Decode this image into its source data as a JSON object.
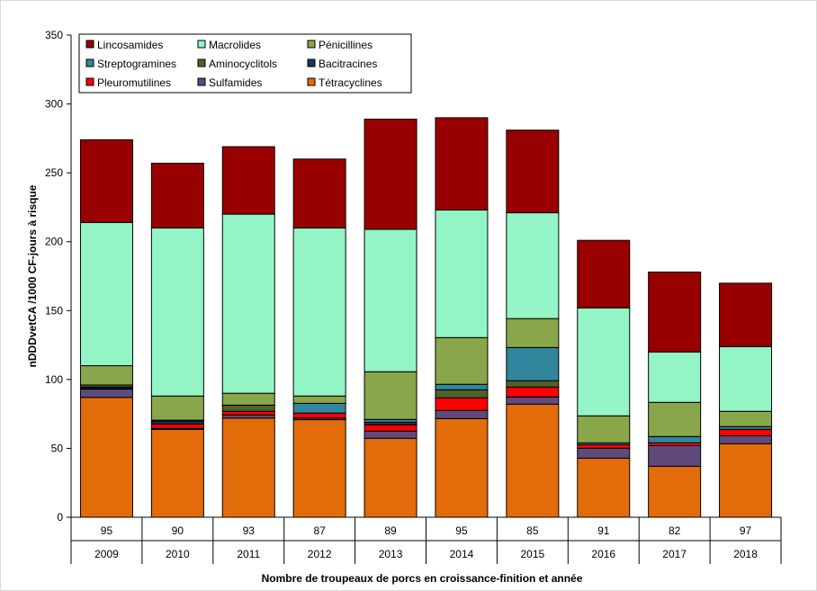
{
  "chart_data": {
    "type": "bar",
    "stacked": true,
    "title": "",
    "xlabel": "Nombre de troupeaux de porcs  en croissance-finition  et  année",
    "ylabel": "nDDDvetCA  /1000 CF-jours  à risque",
    "ylim": [
      0,
      350
    ],
    "yticks": [
      0,
      50,
      100,
      150,
      200,
      250,
      300,
      350
    ],
    "categories": [
      "2009",
      "2010",
      "2011",
      "2012",
      "2013",
      "2014",
      "2015",
      "2016",
      "2017",
      "2018"
    ],
    "herd_counts": [
      "95",
      "90",
      "93",
      "87",
      "89",
      "95",
      "85",
      "91",
      "82",
      "97"
    ],
    "legend_position": "top-left",
    "series": [
      {
        "name": "Tétracyclines",
        "color": "#E36C0A",
        "values": [
          87,
          63.8,
          72,
          70.8,
          57.3,
          71.6,
          82.1,
          42.9,
          37,
          53.4
        ]
      },
      {
        "name": "Sulfamides",
        "color": "#604A7B",
        "values": [
          6,
          0.7,
          2.3,
          1.2,
          5.2,
          5.9,
          5.2,
          7.2,
          15,
          5.8
        ]
      },
      {
        "name": "Pleuromutilines",
        "color": "#FF0000",
        "values": [
          0.5,
          3.2,
          2.6,
          3.6,
          4.6,
          9.2,
          7.2,
          2.6,
          2,
          4.6
        ]
      },
      {
        "name": "Bacitracines",
        "color": "#17375E",
        "values": [
          1,
          2,
          0,
          0,
          1.9,
          0,
          0,
          0,
          0,
          0
        ]
      },
      {
        "name": "Aminocyclitols",
        "color": "#4F6228",
        "values": [
          1.5,
          0.8,
          4.5,
          0,
          0,
          5.8,
          4.6,
          0,
          0,
          0
        ]
      },
      {
        "name": "Streptogramines",
        "color": "#31859C",
        "values": [
          0,
          0,
          0,
          7.1,
          2,
          4,
          24.1,
          1.3,
          4.6,
          2
        ]
      },
      {
        "name": "Pénicillines",
        "color": "#8AA64B",
        "values": [
          14,
          17.5,
          8.6,
          5.3,
          34.6,
          33.9,
          21,
          19.6,
          24.8,
          11.1
        ]
      },
      {
        "name": "Macrolides",
        "color": "#93F5C6",
        "values": [
          104,
          122,
          130,
          122,
          103.4,
          92.6,
          76.8,
          78.4,
          36.6,
          47
        ]
      },
      {
        "name": "Lincosamides",
        "color": "#990000",
        "values": [
          60,
          47,
          49,
          50,
          80,
          67,
          60,
          49,
          58,
          46
        ]
      }
    ],
    "legend_order": [
      "Lincosamides",
      "Macrolides",
      "Pénicillines",
      "Streptogramines",
      "Aminocyclitols",
      "Bacitracines",
      "Pleuromutilines",
      "Sulfamides",
      "Tétracyclines"
    ]
  }
}
